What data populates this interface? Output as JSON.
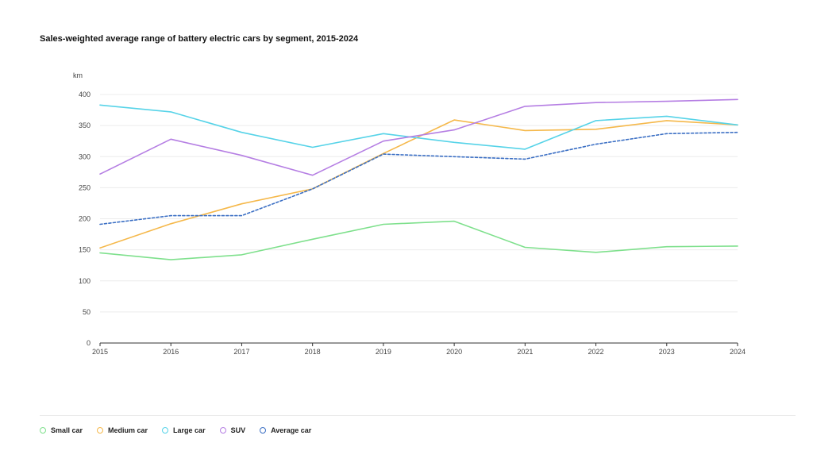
{
  "chart_data": {
    "type": "line",
    "title": "Sales-weighted average range of battery electric cars by segment, 2015-2024",
    "ylabel": "km",
    "xlabel": "",
    "x": [
      "2015",
      "2016",
      "2017",
      "2018",
      "2019",
      "2020",
      "2021",
      "2022",
      "2023",
      "2024"
    ],
    "ylim": [
      0,
      400
    ],
    "yticks": [
      "0",
      "50",
      "100",
      "150",
      "200",
      "250",
      "300",
      "350",
      "400"
    ],
    "grid": true,
    "legend_position": "bottom-left",
    "series": [
      {
        "name": "Small car",
        "color": "#7ee08c",
        "dashed": false,
        "values": [
          145,
          134,
          142,
          167,
          191,
          196,
          154,
          146,
          155,
          156
        ]
      },
      {
        "name": "Medium car",
        "color": "#f5b84a",
        "dashed": false,
        "values": [
          153,
          192,
          224,
          248,
          305,
          359,
          342,
          344,
          358,
          351
        ]
      },
      {
        "name": "Large car",
        "color": "#56d3e8",
        "dashed": false,
        "values": [
          383,
          372,
          339,
          315,
          337,
          323,
          312,
          358,
          365,
          351
        ]
      },
      {
        "name": "SUV",
        "color": "#b57ee3",
        "dashed": false,
        "values": [
          272,
          328,
          302,
          270,
          325,
          343,
          381,
          387,
          389,
          392
        ]
      },
      {
        "name": "Average car",
        "color": "#3b6fc4",
        "dashed": true,
        "values": [
          191,
          205,
          205,
          248,
          304,
          300,
          296,
          320,
          337,
          339
        ]
      }
    ]
  }
}
